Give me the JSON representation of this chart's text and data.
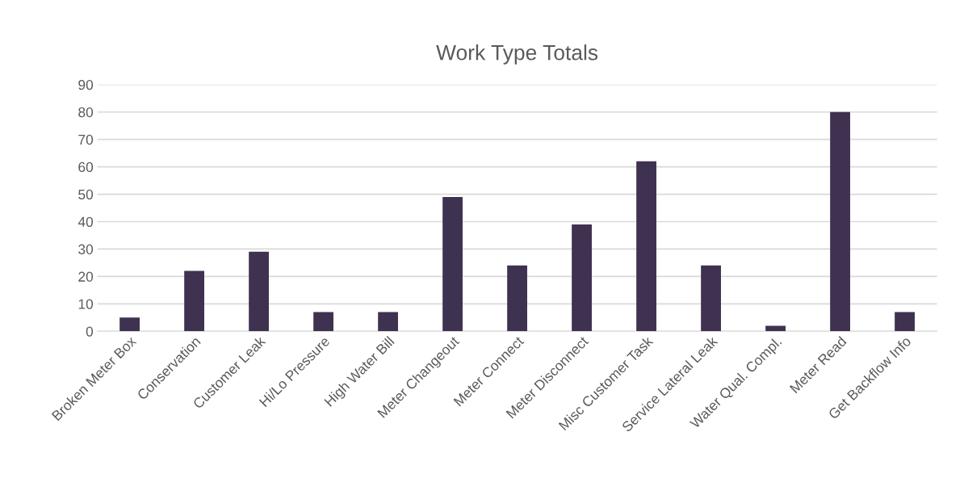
{
  "chart_data": {
    "type": "bar",
    "title": "Work Type Totals",
    "categories": [
      "Broken Meter Box",
      "Conservation",
      "Customer Leak",
      "Hi/Lo Pressure",
      "High Water Bill",
      "Meter Changeout",
      "Meter Connect",
      "Meter Disconnect",
      "Misc Customer Task",
      "Service Lateral Leak",
      "Water Qual. Compl.",
      "Meter Read",
      "Get Backflow Info"
    ],
    "values": [
      5,
      22,
      29,
      7,
      7,
      49,
      24,
      39,
      62,
      24,
      2,
      80,
      7
    ],
    "color": "#3f3150",
    "ylim": [
      0,
      90
    ],
    "yticks": [
      0,
      10,
      20,
      30,
      40,
      50,
      60,
      70,
      80,
      90
    ],
    "grid": "y"
  }
}
